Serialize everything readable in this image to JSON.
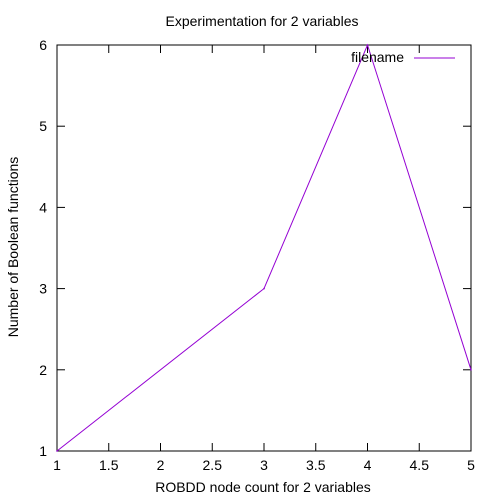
{
  "chart_data": {
    "type": "line",
    "title": "Experimentation for 2 variables",
    "xlabel": "ROBDD node count for 2 variables",
    "ylabel": "Number of Boolean functions",
    "xlim": [
      1,
      5
    ],
    "ylim": [
      1,
      6
    ],
    "xticks": [
      1,
      1.5,
      2,
      2.5,
      3,
      3.5,
      4,
      4.5,
      5
    ],
    "xtick_labels": [
      "1",
      "1.5",
      "2",
      "2.5",
      "3",
      "3.5",
      "4",
      "4.5",
      "5"
    ],
    "yticks": [
      1,
      2,
      3,
      4,
      5,
      6
    ],
    "ytick_labels": [
      "1",
      "2",
      "3",
      "4",
      "5",
      "6"
    ],
    "grid": false,
    "legend_position": "top-right",
    "series": [
      {
        "name": "filename",
        "color": "#9400d3",
        "x": [
          1,
          3,
          4,
          5
        ],
        "y": [
          1,
          3,
          6,
          2
        ]
      }
    ]
  }
}
